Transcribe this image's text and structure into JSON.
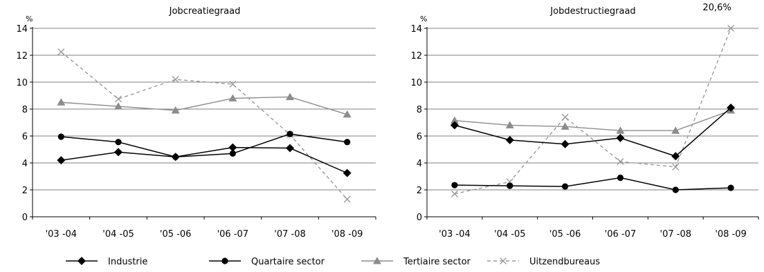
{
  "legend": [
    {
      "name": "Industrie",
      "color": "#000000",
      "marker": "diamond-icon",
      "dash": false
    },
    {
      "name": "Quartaire sector",
      "color": "#000000",
      "marker": "circle-icon",
      "dash": false
    },
    {
      "name": "Tertiaire sector",
      "color": "#8c8c8c",
      "marker": "triangle-icon",
      "dash": false
    },
    {
      "name": "Uitzendbureaus",
      "color": "#9a9a9a",
      "marker": "cross-icon",
      "dash": true
    }
  ],
  "chart_data": [
    {
      "type": "line",
      "title": "Jobcreatiegraad",
      "ylabel": "%",
      "categories": [
        "'03 -04",
        "'04 -05",
        "'05 -06",
        "'06 -07",
        "'07 -08",
        "'08 -09"
      ],
      "ylim": [
        0,
        14
      ],
      "yticks": [
        0,
        2,
        4,
        6,
        8,
        10,
        12,
        14
      ],
      "grid": true,
      "legend_position": "bottom",
      "series": [
        {
          "name": "Industrie",
          "values": [
            4.2,
            4.8,
            4.45,
            5.15,
            5.1,
            3.25
          ]
        },
        {
          "name": "Quartaire sector",
          "values": [
            5.95,
            5.55,
            4.45,
            4.7,
            6.15,
            5.55
          ]
        },
        {
          "name": "Tertiaire sector",
          "values": [
            8.5,
            8.2,
            7.9,
            8.8,
            8.9,
            7.6
          ]
        },
        {
          "name": "Uitzendbureaus",
          "values": [
            12.25,
            8.75,
            10.2,
            9.85,
            6.1,
            1.3
          ]
        }
      ],
      "annotations": []
    },
    {
      "type": "line",
      "title": "Jobdestructiegraad",
      "ylabel": "%",
      "categories": [
        "'03 -04",
        "'04 -05",
        "'05 -06",
        "'06 -07",
        "'07 -08",
        "'08 -09"
      ],
      "ylim": [
        0,
        14
      ],
      "yticks": [
        0,
        2,
        4,
        6,
        8,
        10,
        12,
        14
      ],
      "grid": true,
      "legend_position": "bottom",
      "series": [
        {
          "name": "Industrie",
          "values": [
            6.8,
            5.7,
            5.4,
            5.85,
            4.5,
            8.1
          ]
        },
        {
          "name": "Quartaire sector",
          "values": [
            2.35,
            2.3,
            2.25,
            2.9,
            2.0,
            2.15
          ]
        },
        {
          "name": "Tertiaire sector",
          "values": [
            7.15,
            6.8,
            6.7,
            6.4,
            6.4,
            7.9
          ]
        },
        {
          "name": "Uitzendbureaus",
          "values": [
            1.7,
            2.6,
            7.4,
            4.1,
            3.7,
            20.6
          ]
        }
      ],
      "annotations": [
        {
          "text": "20,6%",
          "series": "Uitzendbureaus",
          "category_index": 5
        }
      ]
    }
  ]
}
